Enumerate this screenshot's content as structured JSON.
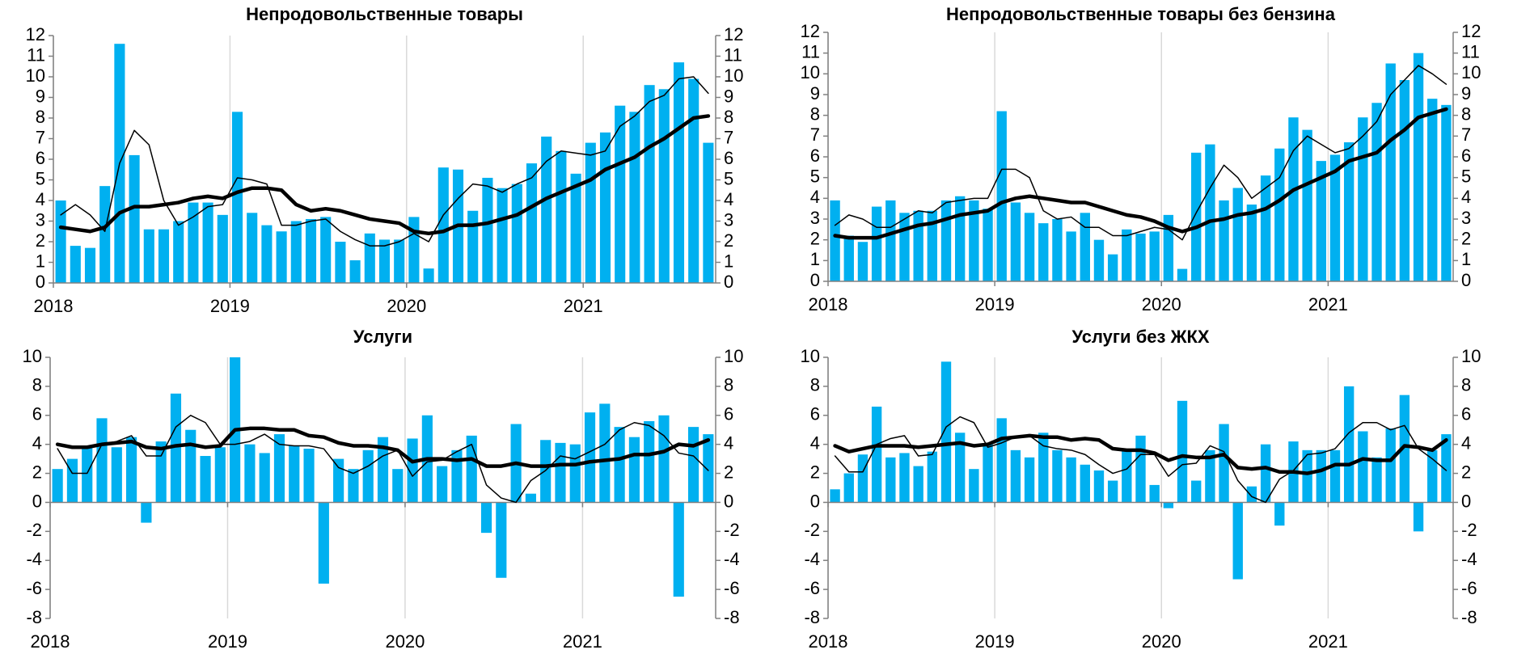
{
  "chart_data": [
    {
      "type": "bar",
      "title": "Непродовольственные товары",
      "categories": [
        "2018",
        null,
        null,
        null,
        null,
        null,
        null,
        null,
        null,
        null,
        null,
        null,
        "2019",
        null,
        null,
        null,
        null,
        null,
        null,
        null,
        null,
        null,
        null,
        null,
        "2020",
        null,
        null,
        null,
        null,
        null,
        null,
        null,
        null,
        null,
        null,
        null,
        "2021",
        null,
        null,
        null,
        null,
        null,
        null,
        null,
        null
      ],
      "series": [
        {
          "type": "bar",
          "color": "#00b0f0",
          "values": [
            4.0,
            1.8,
            1.7,
            4.7,
            11.6,
            6.2,
            2.6,
            2.6,
            3.0,
            3.9,
            3.9,
            3.3,
            8.3,
            3.4,
            2.8,
            2.5,
            3.0,
            3.1,
            3.2,
            2.0,
            1.1,
            2.4,
            2.1,
            2.1,
            3.2,
            0.7,
            5.6,
            5.5,
            3.5,
            5.1,
            4.6,
            4.8,
            5.8,
            7.1,
            6.4,
            5.3,
            6.8,
            7.3,
            8.6,
            8.3,
            9.6,
            9.4,
            10.7,
            9.9,
            6.8
          ]
        },
        {
          "type": "line",
          "color": "#000000",
          "linewidth": 1.5,
          "values": [
            3.3,
            3.8,
            3.3,
            2.5,
            5.8,
            7.4,
            6.7,
            4.0,
            2.8,
            3.2,
            3.7,
            3.8,
            5.1,
            5.0,
            4.8,
            2.8,
            2.8,
            3.0,
            3.1,
            2.5,
            2.1,
            1.8,
            1.8,
            2.0,
            2.4,
            2.0,
            3.3,
            4.1,
            4.8,
            4.7,
            4.4,
            4.8,
            5.1,
            5.9,
            6.4,
            6.3,
            6.2,
            6.4,
            7.6,
            8.1,
            8.8,
            9.1,
            9.9,
            10.0,
            9.2
          ]
        },
        {
          "type": "line",
          "color": "#000000",
          "linewidth": 4.5,
          "values": [
            2.7,
            2.6,
            2.5,
            2.7,
            3.4,
            3.7,
            3.7,
            3.8,
            3.9,
            4.1,
            4.2,
            4.1,
            4.4,
            4.6,
            4.6,
            4.5,
            3.8,
            3.5,
            3.6,
            3.5,
            3.3,
            3.1,
            3.0,
            2.9,
            2.5,
            2.4,
            2.5,
            2.8,
            2.8,
            2.9,
            3.1,
            3.3,
            3.7,
            4.1,
            4.4,
            4.7,
            5.0,
            5.5,
            5.8,
            6.1,
            6.6,
            7.0,
            7.5,
            8.0,
            8.1
          ]
        }
      ],
      "ylim": [
        0,
        12
      ],
      "yticks": [
        0,
        1,
        2,
        3,
        4,
        5,
        6,
        7,
        8,
        9,
        10,
        11,
        12
      ],
      "y2lim": [
        0,
        12
      ],
      "y2ticks": [
        0,
        1,
        2,
        3,
        4,
        5,
        6,
        7,
        8,
        9,
        10,
        11,
        12
      ],
      "grid": "x"
    },
    {
      "type": "bar",
      "title": "Непродовольственные товары без бензина",
      "categories": [
        "2018",
        null,
        null,
        null,
        null,
        null,
        null,
        null,
        null,
        null,
        null,
        null,
        "2019",
        null,
        null,
        null,
        null,
        null,
        null,
        null,
        null,
        null,
        null,
        null,
        "2020",
        null,
        null,
        null,
        null,
        null,
        null,
        null,
        null,
        null,
        null,
        null,
        "2021",
        null,
        null,
        null,
        null,
        null,
        null,
        null,
        null
      ],
      "series": [
        {
          "type": "bar",
          "color": "#00b0f0",
          "values": [
            3.9,
            2.2,
            1.9,
            3.6,
            3.9,
            3.3,
            3.4,
            3.4,
            3.9,
            4.1,
            3.9,
            3.5,
            8.2,
            3.8,
            3.3,
            2.8,
            3.0,
            2.4,
            3.3,
            2.0,
            1.3,
            2.5,
            2.3,
            2.4,
            3.2,
            0.6,
            6.2,
            6.6,
            3.9,
            4.5,
            3.7,
            5.1,
            6.4,
            7.9,
            7.3,
            5.8,
            6.1,
            6.7,
            7.9,
            8.6,
            10.5,
            9.7,
            11.0,
            8.8,
            8.5
          ]
        },
        {
          "type": "line",
          "color": "#000000",
          "linewidth": 1.5,
          "values": [
            2.7,
            3.2,
            3.0,
            2.6,
            2.6,
            3.0,
            3.4,
            3.3,
            3.8,
            3.9,
            4.0,
            4.0,
            5.4,
            5.4,
            5.0,
            3.4,
            3.0,
            3.1,
            2.6,
            2.6,
            2.2,
            2.2,
            2.4,
            2.6,
            2.5,
            2.0,
            3.3,
            4.5,
            5.6,
            5.0,
            4.0,
            4.5,
            5.0,
            6.3,
            7.0,
            6.6,
            6.2,
            6.4,
            7.0,
            7.7,
            9.0,
            9.7,
            10.4,
            10.0,
            9.5
          ]
        },
        {
          "type": "line",
          "color": "#000000",
          "linewidth": 4.5,
          "values": [
            2.2,
            2.1,
            2.1,
            2.1,
            2.3,
            2.5,
            2.7,
            2.8,
            3.0,
            3.2,
            3.3,
            3.4,
            3.8,
            4.0,
            4.1,
            4.0,
            3.9,
            3.8,
            3.8,
            3.6,
            3.4,
            3.2,
            3.1,
            2.9,
            2.6,
            2.4,
            2.6,
            2.9,
            3.0,
            3.2,
            3.3,
            3.5,
            3.9,
            4.4,
            4.7,
            5.0,
            5.3,
            5.8,
            6.0,
            6.2,
            6.8,
            7.3,
            7.9,
            8.1,
            8.3
          ]
        }
      ],
      "ylim": [
        0,
        12
      ],
      "yticks": [
        0,
        1,
        2,
        3,
        4,
        5,
        6,
        7,
        8,
        9,
        10,
        11,
        12
      ],
      "y2lim": [
        0,
        12
      ],
      "y2ticks": [
        0,
        1,
        2,
        3,
        4,
        5,
        6,
        7,
        8,
        9,
        10,
        11,
        12
      ],
      "grid": "x"
    },
    {
      "type": "bar",
      "title": "Услуги",
      "categories": [
        "2018",
        null,
        null,
        null,
        null,
        null,
        null,
        null,
        null,
        null,
        null,
        null,
        "2019",
        null,
        null,
        null,
        null,
        null,
        null,
        null,
        null,
        null,
        null,
        null,
        "2020",
        null,
        null,
        null,
        null,
        null,
        null,
        null,
        null,
        null,
        null,
        null,
        "2021",
        null,
        null,
        null,
        null,
        null,
        null,
        null,
        null
      ],
      "series": [
        {
          "type": "bar",
          "color": "#00b0f0",
          "values": [
            2.3,
            3.0,
            3.8,
            5.8,
            3.8,
            4.5,
            -1.4,
            4.2,
            7.5,
            5.0,
            3.2,
            3.8,
            10.0,
            4.0,
            3.4,
            4.7,
            3.9,
            3.7,
            -5.6,
            3.0,
            2.3,
            3.6,
            4.5,
            2.3,
            4.4,
            6.0,
            2.5,
            3.6,
            4.6,
            -2.1,
            -5.2,
            5.4,
            0.6,
            4.3,
            4.1,
            4.0,
            6.2,
            6.8,
            5.2,
            4.5,
            5.6,
            6.0,
            -6.5,
            5.2,
            4.7
          ]
        },
        {
          "type": "line",
          "color": "#000000",
          "linewidth": 1.5,
          "values": [
            3.7,
            2.0,
            2.0,
            4.0,
            4.2,
            4.6,
            3.2,
            3.2,
            5.2,
            6.0,
            5.5,
            4.0,
            4.0,
            4.2,
            4.7,
            4.0,
            3.9,
            3.9,
            3.7,
            2.4,
            2.0,
            2.5,
            3.2,
            3.6,
            1.8,
            2.8,
            2.9,
            3.5,
            4.0,
            1.2,
            0.3,
            0.0,
            1.5,
            2.2,
            3.2,
            3.0,
            3.5,
            4.0,
            5.0,
            5.5,
            5.3,
            4.6,
            3.4,
            3.2,
            2.2
          ]
        },
        {
          "type": "line",
          "color": "#000000",
          "linewidth": 4.5,
          "values": [
            4.0,
            3.8,
            3.8,
            4.0,
            4.1,
            4.2,
            3.8,
            3.7,
            3.9,
            4.0,
            3.8,
            3.9,
            5.0,
            5.1,
            5.1,
            5.0,
            5.0,
            4.6,
            4.5,
            4.1,
            3.9,
            3.9,
            3.8,
            3.6,
            2.8,
            3.0,
            3.0,
            2.9,
            3.0,
            2.5,
            2.5,
            2.7,
            2.5,
            2.5,
            2.6,
            2.6,
            2.8,
            2.9,
            3.0,
            3.3,
            3.3,
            3.5,
            4.0,
            3.9,
            4.3
          ]
        }
      ],
      "ylim": [
        -8,
        10
      ],
      "yticks": [
        -8,
        -6,
        -4,
        -2,
        0,
        2,
        4,
        6,
        8,
        10
      ],
      "y2lim": [
        -8,
        10
      ],
      "y2ticks": [
        -8,
        -6,
        -4,
        -2,
        0,
        2,
        4,
        6,
        8,
        10
      ],
      "grid": "x"
    },
    {
      "type": "bar",
      "title": "Услуги без ЖКХ",
      "categories": [
        "2018",
        null,
        null,
        null,
        null,
        null,
        null,
        null,
        null,
        null,
        null,
        null,
        "2019",
        null,
        null,
        null,
        null,
        null,
        null,
        null,
        null,
        null,
        null,
        null,
        "2020",
        null,
        null,
        null,
        null,
        null,
        null,
        null,
        null,
        null,
        null,
        null,
        "2021",
        null,
        null,
        null,
        null,
        null,
        null,
        null,
        null
      ],
      "series": [
        {
          "type": "bar",
          "color": "#00b0f0",
          "values": [
            0.9,
            2.0,
            3.3,
            6.6,
            3.1,
            3.4,
            2.5,
            3.5,
            9.7,
            4.8,
            2.3,
            4.0,
            5.8,
            3.6,
            3.1,
            4.8,
            3.6,
            3.1,
            2.6,
            2.2,
            1.5,
            3.6,
            4.6,
            1.2,
            -0.4,
            7.0,
            1.5,
            3.6,
            5.4,
            -5.3,
            1.1,
            4.0,
            -1.6,
            4.2,
            3.6,
            3.6,
            3.6,
            8.0,
            4.9,
            3.1,
            5.1,
            7.4,
            -2.0,
            3.6,
            4.7
          ]
        },
        {
          "type": "line",
          "color": "#000000",
          "linewidth": 1.5,
          "values": [
            3.2,
            2.1,
            2.1,
            4.0,
            4.4,
            4.6,
            3.2,
            3.3,
            5.2,
            5.9,
            5.5,
            3.8,
            4.1,
            4.5,
            4.6,
            3.9,
            3.7,
            3.6,
            3.3,
            2.6,
            2.0,
            2.3,
            3.3,
            3.3,
            1.8,
            2.6,
            2.7,
            3.9,
            3.5,
            1.5,
            0.4,
            0.0,
            1.6,
            2.2,
            3.3,
            3.4,
            3.7,
            4.8,
            5.5,
            5.5,
            5.0,
            5.3,
            3.7,
            3.0,
            2.2
          ]
        },
        {
          "type": "line",
          "color": "#000000",
          "linewidth": 4.5,
          "values": [
            3.9,
            3.5,
            3.7,
            3.9,
            3.9,
            3.9,
            3.8,
            3.9,
            4.0,
            4.1,
            3.9,
            4.0,
            4.4,
            4.5,
            4.6,
            4.5,
            4.5,
            4.3,
            4.4,
            4.3,
            3.7,
            3.6,
            3.6,
            3.4,
            2.9,
            3.2,
            3.1,
            3.1,
            3.3,
            2.4,
            2.3,
            2.4,
            2.1,
            2.1,
            2.0,
            2.2,
            2.6,
            2.6,
            3.0,
            2.9,
            2.9,
            3.9,
            3.8,
            3.6,
            4.3
          ]
        }
      ],
      "ylim": [
        -8,
        10
      ],
      "yticks": [
        -8,
        -6,
        -4,
        -2,
        0,
        2,
        4,
        6,
        8,
        10
      ],
      "y2lim": [
        -8,
        10
      ],
      "y2ticks": [
        -8,
        -6,
        -4,
        -2,
        0,
        2,
        4,
        6,
        8,
        10
      ],
      "grid": "x"
    }
  ]
}
